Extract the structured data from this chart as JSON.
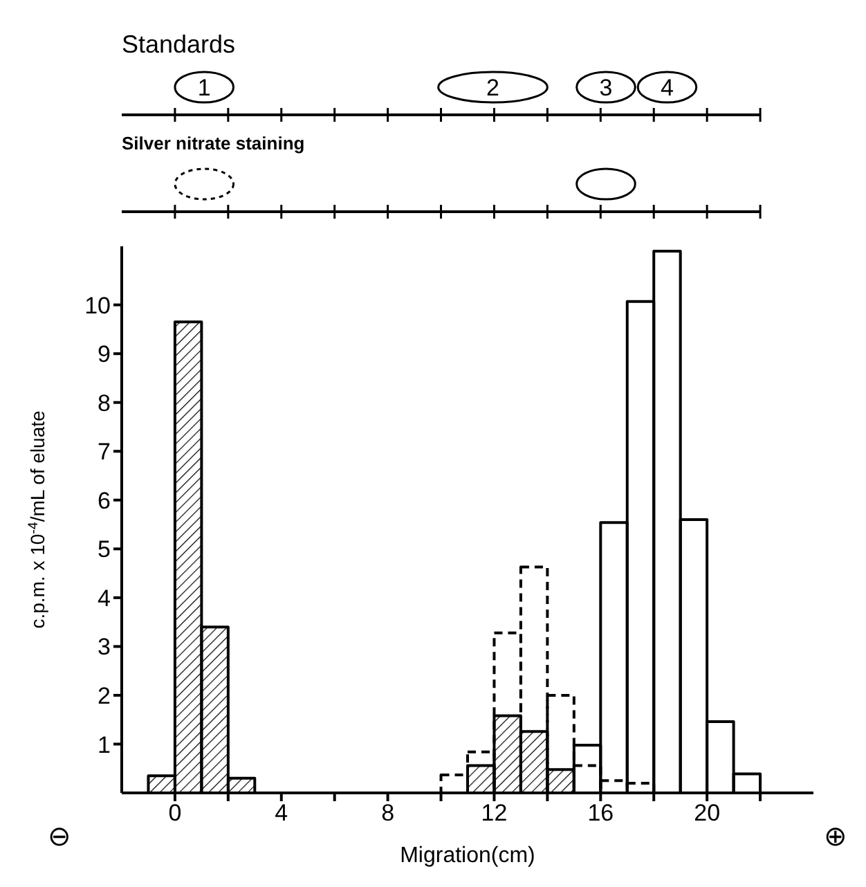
{
  "chart_data": {
    "type": "histogram",
    "xlabel": "Migration(cm)",
    "ylabel": "c.p.m. x 10$^{-4}$/mL of eluate",
    "bins": [
      -1,
      0,
      1,
      2,
      3,
      4,
      5,
      6,
      7,
      8,
      9,
      10,
      11,
      12,
      13,
      14,
      15,
      16,
      17,
      18,
      19,
      20,
      21,
      22
    ],
    "series": [
      {
        "color": "#000000",
        "line_style": "solid",
        "values": [
          0.35,
          9.65,
          3.4,
          0.3,
          null,
          null,
          null,
          null,
          null,
          null,
          null,
          null,
          0.56,
          1.58,
          1.26,
          0.48,
          null,
          null,
          null,
          null,
          null,
          null,
          null
        ]
      },
      {
        "color": "#000000",
        "line_style": "dashed",
        "values": [
          null,
          null,
          null,
          null,
          null,
          null,
          null,
          null,
          null,
          null,
          null,
          0.37,
          0.84,
          3.28,
          4.63,
          2.0,
          0.56,
          0.25,
          0.2,
          null,
          null,
          null,
          null
        ]
      },
      {
        "color": "#000000",
        "line_style": "solid",
        "values": [
          null,
          null,
          null,
          null,
          null,
          null,
          null,
          null,
          null,
          null,
          null,
          null,
          null,
          null,
          null,
          null,
          0.98,
          5.54,
          10.07,
          11.1,
          5.6,
          1.46,
          0.39
        ]
      }
    ],
    "xlim": [
      -2,
      24
    ],
    "xticks": [
      0,
      {
        "value": 2,
        "label": null
      },
      4,
      {
        "value": 6,
        "label": null
      },
      8,
      {
        "value": 10,
        "label": null
      },
      12,
      {
        "value": 14,
        "label": null
      },
      16,
      {
        "value": 18,
        "label": null
      },
      20,
      {
        "value": 22,
        "label": null
      }
    ],
    "ylim": [
      0,
      11.2
    ],
    "yticks": [
      1,
      2,
      3,
      4,
      5,
      6,
      7,
      8,
      9,
      10
    ],
    "annotations": [
      "Standards",
      "1",
      "2",
      "3",
      "4",
      "Silver nitrate staining",
      "⊖",
      "⊕"
    ]
  }
}
